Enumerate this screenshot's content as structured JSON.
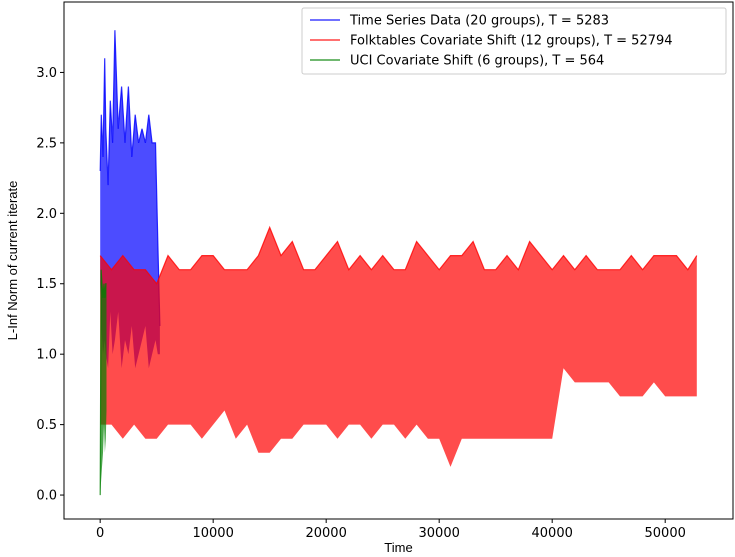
{
  "chart_data": {
    "type": "line",
    "title": "",
    "xlabel": "Time",
    "ylabel": "L-Inf Norm of current iterate",
    "xlim": [
      -3200,
      56000
    ],
    "ylim": [
      -0.17,
      3.5
    ],
    "xticks": [
      0,
      10000,
      20000,
      30000,
      40000,
      50000
    ],
    "xtick_labels": [
      "0",
      "10000",
      "20000",
      "30000",
      "40000",
      "50000"
    ],
    "yticks": [
      0.0,
      0.5,
      1.0,
      1.5,
      2.0,
      2.5,
      3.0
    ],
    "ytick_labels": [
      "0.0",
      "0.5",
      "1.0",
      "1.5",
      "2.0",
      "2.5",
      "3.0"
    ],
    "grid": false,
    "legend_position": "top-right",
    "series": [
      {
        "name": "Time Series Data (20 groups), T = 5283",
        "color": "#0000ff",
        "x": [
          0,
          100,
          250,
          400,
          500,
          700,
          900,
          1100,
          1300,
          1600,
          1900,
          2200,
          2500,
          2800,
          3100,
          3400,
          3700,
          4000,
          4300,
          4600,
          4900,
          5100,
          5283
        ],
        "y": [
          2.3,
          2.7,
          2.4,
          3.1,
          2.6,
          2.2,
          2.8,
          2.5,
          3.3,
          2.6,
          2.9,
          2.5,
          2.9,
          2.4,
          2.7,
          2.5,
          2.6,
          2.5,
          2.7,
          2.5,
          2.5,
          1.8,
          1.2
        ],
        "lower_envelope": [
          1.5,
          1.2,
          1.0,
          1.1,
          1.0,
          0.9,
          1.3,
          1.0,
          1.1,
          1.3,
          0.9,
          1.1,
          1.0,
          1.2,
          0.9,
          1.0,
          1.1,
          1.2,
          0.9,
          1.0,
          1.1,
          1.0,
          1.0
        ]
      },
      {
        "name": "Folktables Covariate Shift (12 groups), T = 52794",
        "color": "#ff0000",
        "x": [
          0,
          1000,
          2000,
          3000,
          4000,
          5000,
          6000,
          7000,
          8000,
          9000,
          10000,
          11000,
          12000,
          13000,
          14000,
          15000,
          16000,
          17000,
          18000,
          19000,
          20000,
          21000,
          22000,
          23000,
          24000,
          25000,
          26000,
          27000,
          28000,
          29000,
          30000,
          31000,
          32000,
          33000,
          34000,
          35000,
          36000,
          37000,
          38000,
          39000,
          40000,
          41000,
          42000,
          43000,
          44000,
          45000,
          46000,
          47000,
          48000,
          49000,
          50000,
          51000,
          52000,
          52794
        ],
        "y": [
          1.7,
          1.6,
          1.7,
          1.6,
          1.6,
          1.5,
          1.7,
          1.6,
          1.6,
          1.7,
          1.7,
          1.6,
          1.6,
          1.6,
          1.7,
          1.9,
          1.7,
          1.8,
          1.6,
          1.6,
          1.7,
          1.8,
          1.6,
          1.7,
          1.6,
          1.7,
          1.6,
          1.6,
          1.8,
          1.7,
          1.6,
          1.7,
          1.7,
          1.8,
          1.6,
          1.6,
          1.7,
          1.6,
          1.8,
          1.7,
          1.6,
          1.7,
          1.6,
          1.7,
          1.6,
          1.6,
          1.6,
          1.7,
          1.6,
          1.7,
          1.7,
          1.7,
          1.6,
          1.7
        ],
        "lower_envelope": [
          0.5,
          0.5,
          0.4,
          0.5,
          0.4,
          0.4,
          0.5,
          0.5,
          0.5,
          0.4,
          0.5,
          0.6,
          0.4,
          0.5,
          0.3,
          0.3,
          0.4,
          0.4,
          0.5,
          0.5,
          0.5,
          0.4,
          0.5,
          0.5,
          0.4,
          0.5,
          0.5,
          0.4,
          0.5,
          0.4,
          0.4,
          0.2,
          0.4,
          0.4,
          0.4,
          0.4,
          0.4,
          0.4,
          0.4,
          0.4,
          0.4,
          0.9,
          0.8,
          0.8,
          0.8,
          0.8,
          0.7,
          0.7,
          0.7,
          0.8,
          0.7,
          0.7,
          0.7,
          0.7
        ]
      },
      {
        "name": "UCI Covariate Shift (6 groups), T = 564",
        "color": "#008000",
        "x": [
          0,
          80,
          160,
          250,
          340,
          420,
          500,
          564
        ],
        "y": [
          0.0,
          1.6,
          1.5,
          1.4,
          1.5,
          1.4,
          1.5,
          1.5
        ],
        "lower_envelope": [
          0.0,
          0.1,
          0.2,
          0.3,
          0.5,
          0.3,
          0.4,
          0.6
        ]
      }
    ]
  }
}
